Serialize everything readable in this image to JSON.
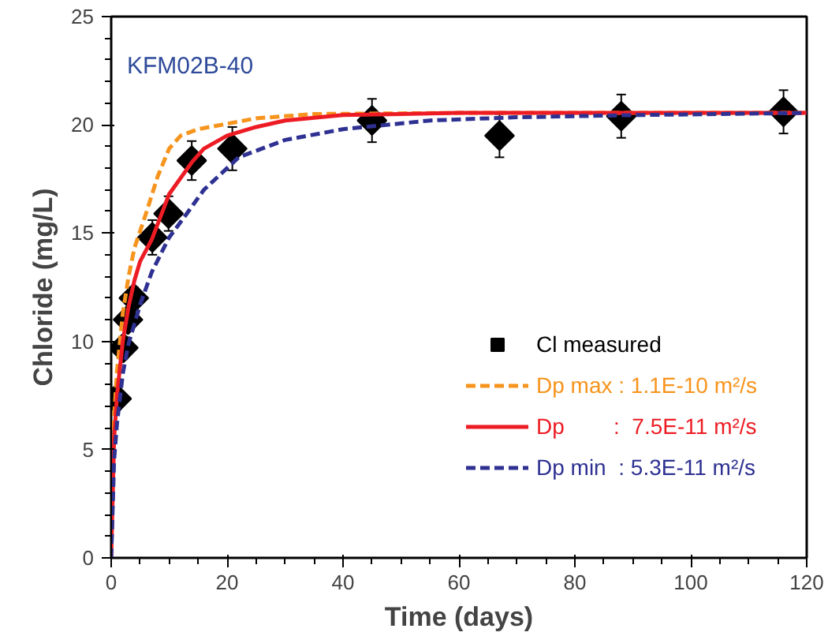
{
  "chart_data": {
    "type": "scatter",
    "xlabel": "Time (days)",
    "ylabel": "Chloride (mg/L)",
    "annotations": [
      "KFM02B-40"
    ],
    "xlim": [
      0,
      120
    ],
    "ylim": [
      0,
      25
    ],
    "xticks": [
      0,
      20,
      40,
      60,
      80,
      100,
      120
    ],
    "yticks": [
      0,
      5,
      10,
      15,
      20,
      25
    ],
    "grid": false,
    "legend": "bottom right",
    "series": [
      {
        "name": "Cl measured",
        "marker": "diamond",
        "color": "#000000",
        "x": [
          0.95,
          2.1,
          2.9,
          3.9,
          7.1,
          9.9,
          13.9,
          20.9,
          45,
          67,
          88,
          116
        ],
        "values": [
          7.35,
          9.7,
          11.0,
          12.0,
          14.8,
          15.9,
          18.35,
          18.9,
          20.2,
          19.5,
          20.4,
          20.6
        ],
        "errors": [
          0.5,
          0.5,
          0.5,
          0.5,
          0.8,
          0.8,
          0.9,
          1.0,
          1.0,
          1.0,
          1.0,
          1.0
        ]
      },
      {
        "name": "Dp max : 1.1E-10 m²/s",
        "type": "line",
        "line_style": "dashed",
        "color": "#f7941d",
        "x": [
          0,
          0.5,
          1,
          2,
          3,
          4,
          6,
          8,
          10,
          12,
          15,
          19,
          25,
          35,
          60,
          120
        ],
        "values": [
          0,
          6.5,
          8.6,
          11.3,
          13,
          14.3,
          15.9,
          17.6,
          18.9,
          19.5,
          19.8,
          20.0,
          20.3,
          20.5,
          20.55,
          20.55
        ]
      },
      {
        "name": "Dp        :  7.5E-11 m²/s",
        "type": "line",
        "line_style": "solid",
        "color": "#ed1c24",
        "x": [
          0,
          0.5,
          1,
          2,
          3,
          4,
          5,
          7,
          10,
          14,
          16,
          20,
          25,
          30,
          40,
          60,
          120
        ],
        "values": [
          0,
          5.5,
          7.5,
          10,
          11.6,
          12.8,
          13.7,
          14.7,
          16.8,
          18.3,
          18.9,
          19.5,
          19.9,
          20.2,
          20.45,
          20.55,
          20.55
        ]
      },
      {
        "name": "Dp min  : 5.3E-11 m²/s",
        "type": "line",
        "line_style": "dashed",
        "color": "#2e3192",
        "x": [
          0,
          0.5,
          1,
          2,
          3,
          5,
          7,
          10,
          12.5,
          16,
          22,
          30,
          40,
          55,
          70,
          90,
          120
        ],
        "values": [
          0,
          4.5,
          6.2,
          8.5,
          9.9,
          11.7,
          13.2,
          14.8,
          15.7,
          17.0,
          18.5,
          19.3,
          19.8,
          20.2,
          20.35,
          20.45,
          20.55
        ]
      }
    ]
  }
}
